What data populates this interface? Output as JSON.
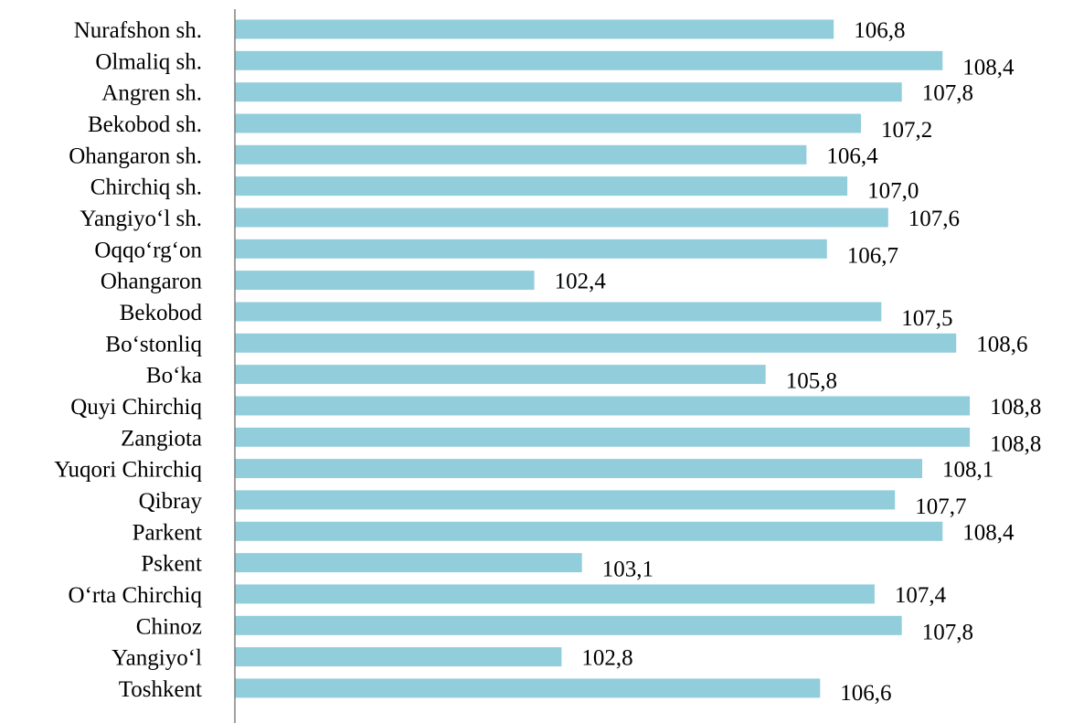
{
  "chart_data": {
    "type": "bar",
    "orientation": "horizontal",
    "title": "",
    "xlabel": "",
    "ylabel": "",
    "categories": [
      "Nurafshon sh.",
      "Olmaliq sh.",
      "Angren sh.",
      "Bekobod sh.",
      "Ohangaron sh.",
      "Chirchiq sh.",
      "Yangiyo‘l sh.",
      "Oqqo‘rg‘on",
      "Ohangaron",
      "Bekobod",
      "Bo‘stonliq",
      "Bo‘ka",
      "Quyi Chirchiq",
      "Zangiota",
      "Yuqori Chirchiq",
      "Qibray",
      "Parkent",
      "Pskent",
      "O‘rta Chirchiq",
      "Chinoz",
      "Yangiyo‘l",
      "Toshkent"
    ],
    "values": [
      106.8,
      108.4,
      107.8,
      107.2,
      106.4,
      107.0,
      107.6,
      106.7,
      102.4,
      107.5,
      108.6,
      105.8,
      108.8,
      108.8,
      108.1,
      107.7,
      108.4,
      103.1,
      107.4,
      107.8,
      102.8,
      106.6
    ],
    "value_labels": [
      "106,8",
      "108,4",
      "107,8",
      "107,2",
      "106,4",
      "107,0",
      "107,6",
      "106,7",
      "102,4",
      "107,5",
      "108,6",
      "105,8",
      "108,8",
      "108,8",
      "108,1",
      "107,7",
      "108,4",
      "103,1",
      "107,4",
      "107,8",
      "102,8",
      "106,6"
    ],
    "xlim": [
      98,
      109
    ],
    "grid": false,
    "legend": "none",
    "bar_color": "#92CDDC"
  }
}
